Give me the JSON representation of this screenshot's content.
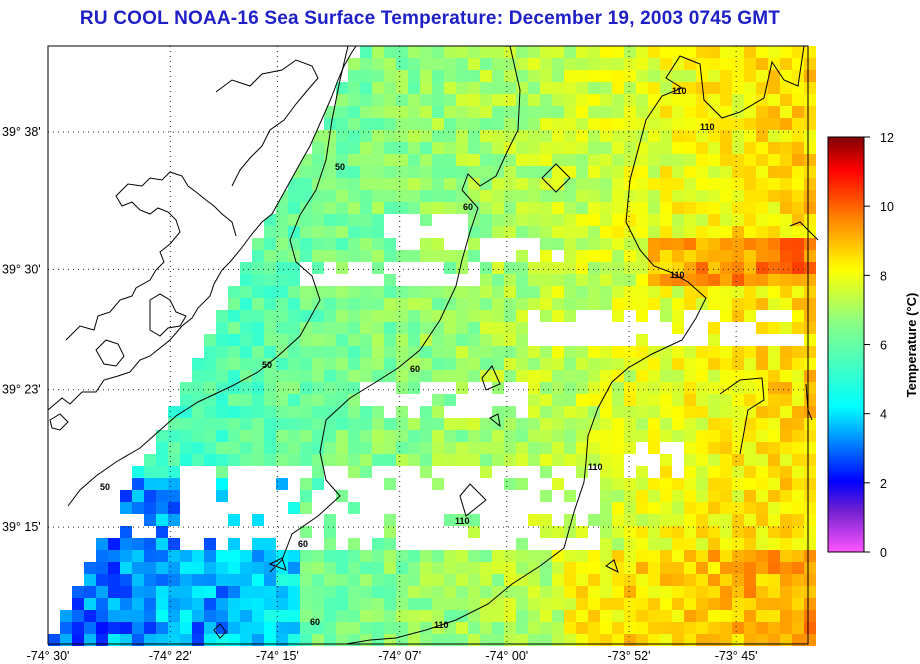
{
  "title": "RU COOL  NOAA-16  Sea Surface Temperature:  December 19, 2003 0745 GMT",
  "map": {
    "lon_range": [
      -74.5,
      -73.6717
    ],
    "lat_range": [
      39.1367,
      39.7167
    ],
    "lon_ticks": [
      {
        "label": "-74° 30'",
        "value": -74.5
      },
      {
        "label": "-74° 22'",
        "value": -74.3667
      },
      {
        "label": "-74° 15'",
        "value": -74.25
      },
      {
        "label": "-74° 07'",
        "value": -74.1167
      },
      {
        "label": "-74° 00'",
        "value": -74.0
      },
      {
        "label": "-73° 52'",
        "value": -73.8667
      },
      {
        "label": "-73° 45'",
        "value": -73.75
      }
    ],
    "lat_ticks": [
      {
        "label": "39° 38'",
        "value": 39.6333
      },
      {
        "label": "39° 30'",
        "value": 39.5
      },
      {
        "label": "39° 23'",
        "value": 39.3833
      },
      {
        "label": "39° 15'",
        "value": 39.25
      }
    ],
    "contour_labels": [
      "50",
      "60",
      "110"
    ],
    "grid": "dotted"
  },
  "colorbar": {
    "label": "Temperature (°C)",
    "ticks": [
      "0",
      "2",
      "4",
      "6",
      "8",
      "10",
      "12"
    ],
    "min": 0,
    "max": 12
  }
}
